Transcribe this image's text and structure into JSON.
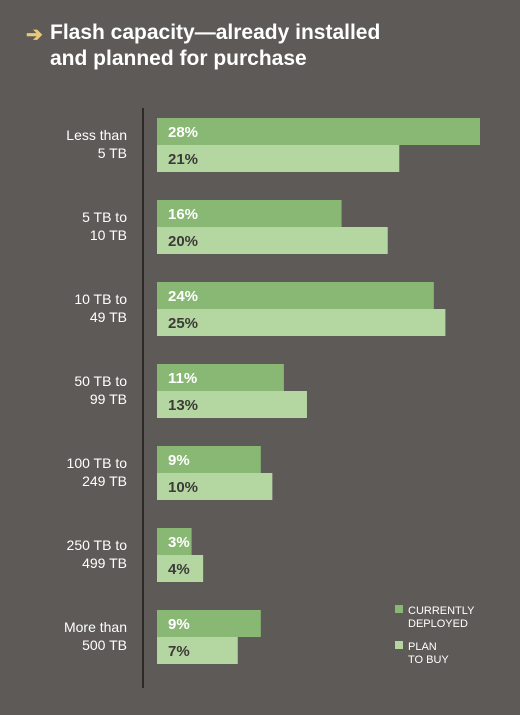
{
  "chart_data": {
    "type": "bar",
    "orientation": "horizontal",
    "title": "Flash capacity—already installed\nand planned for purchase",
    "categories": [
      [
        "Less than",
        "5 TB"
      ],
      [
        "5 TB to",
        "10 TB"
      ],
      [
        "10 TB to",
        "49 TB"
      ],
      [
        "50 TB to",
        "99 TB"
      ],
      [
        "100 TB to",
        "249 TB"
      ],
      [
        "250 TB to",
        "499 TB"
      ],
      [
        "More than",
        "500 TB"
      ]
    ],
    "series": [
      {
        "name": "CURRENTLY DEPLOYED",
        "legend_lines": [
          "CURRENTLY",
          "DEPLOYED"
        ],
        "values": [
          28,
          16,
          24,
          11,
          9,
          3,
          9
        ],
        "labels": [
          "28%",
          "16%",
          "24%",
          "11%",
          "9%",
          "3%",
          "9%"
        ],
        "color": "#88b873",
        "label_color": "#ffffff"
      },
      {
        "name": "PLAN TO BUY",
        "legend_lines": [
          "PLAN",
          "TO BUY"
        ],
        "values": [
          21,
          20,
          25,
          13,
          10,
          4,
          7
        ],
        "labels": [
          "21%",
          "20%",
          "25%",
          "13%",
          "10%",
          "4%",
          "7%"
        ],
        "color": "#b4d7a2",
        "label_color": "#3d3a37"
      }
    ],
    "xlim": [
      0,
      28
    ],
    "grid": false,
    "legend": "bottom-right",
    "unit": "%"
  },
  "colors": {
    "background": "#5d5a57",
    "axis": "#2b2a28",
    "title_arrow": "#e8c97a"
  },
  "icons": {
    "title_marker": "arrow-right-icon"
  },
  "title_marker_glyph": "➔"
}
